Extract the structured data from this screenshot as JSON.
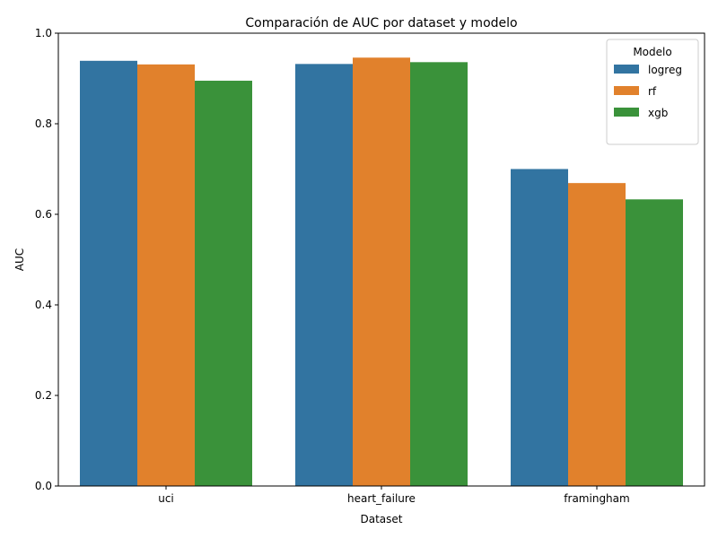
{
  "chart_data": {
    "type": "bar",
    "title": "Comparación de AUC por dataset y modelo",
    "xlabel": "Dataset",
    "ylabel": "AUC",
    "ylim": [
      0,
      1.0
    ],
    "yticks": [
      "0.0",
      "0.2",
      "0.4",
      "0.6",
      "0.8",
      "1.0"
    ],
    "categories": [
      "uci",
      "heart_failure",
      "framingham"
    ],
    "series": [
      {
        "name": "logreg",
        "color": "#3274a1",
        "values": [
          0.939,
          0.932,
          0.7
        ]
      },
      {
        "name": "rf",
        "color": "#e1812c",
        "values": [
          0.931,
          0.946,
          0.669
        ]
      },
      {
        "name": "xgb",
        "color": "#3a923a",
        "values": [
          0.895,
          0.936,
          0.633
        ]
      }
    ],
    "legend": {
      "title": "Modelo",
      "placement": "top-right"
    },
    "grid": false
  }
}
